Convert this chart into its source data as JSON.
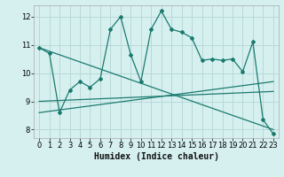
{
  "xlabel": "Humidex (Indice chaleur)",
  "bg_color": "#d6f0f0",
  "grid_color": "#b8d8d8",
  "line_color": "#1a7a6e",
  "x_ticks": [
    0,
    1,
    2,
    3,
    4,
    5,
    6,
    7,
    8,
    9,
    10,
    11,
    12,
    13,
    14,
    15,
    16,
    17,
    18,
    19,
    20,
    21,
    22,
    23
  ],
  "y_ticks": [
    8,
    9,
    10,
    11,
    12
  ],
  "ylim": [
    7.7,
    12.4
  ],
  "xlim": [
    -0.5,
    23.5
  ],
  "series1_x": [
    0,
    1,
    2,
    3,
    4,
    5,
    6,
    7,
    8,
    9,
    10,
    11,
    12,
    13,
    14,
    15,
    16,
    17,
    18,
    19,
    20,
    21,
    22,
    23
  ],
  "series1_y": [
    10.9,
    10.7,
    8.6,
    9.4,
    9.7,
    9.5,
    9.8,
    11.55,
    12.0,
    10.65,
    9.7,
    11.55,
    12.2,
    11.55,
    11.45,
    11.25,
    10.45,
    10.5,
    10.45,
    10.5,
    10.05,
    11.1,
    8.35,
    7.85
  ],
  "series2_x": [
    0,
    23
  ],
  "series2_y": [
    10.9,
    8.0
  ],
  "series3_x": [
    0,
    23
  ],
  "series3_y": [
    8.6,
    9.7
  ],
  "series4_x": [
    0,
    23
  ],
  "series4_y": [
    9.0,
    9.35
  ]
}
